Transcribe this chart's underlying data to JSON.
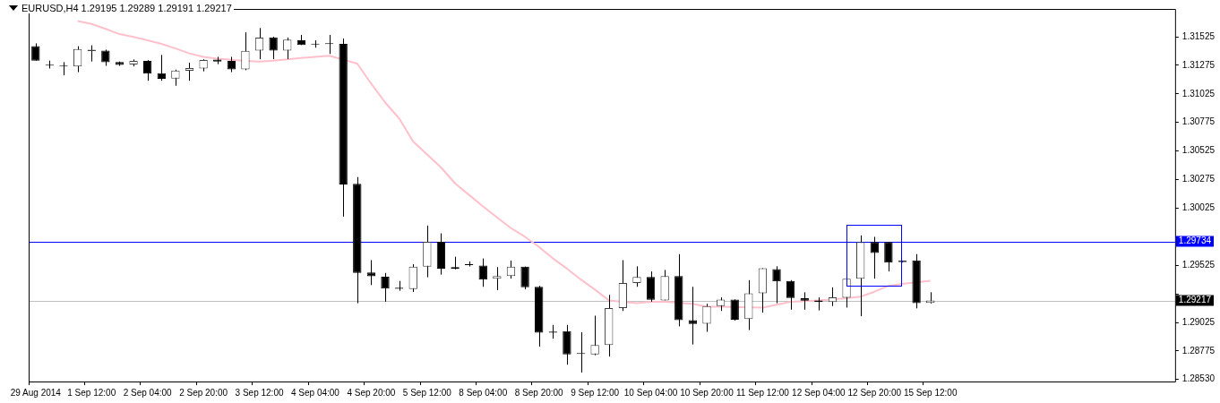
{
  "chart_data": {
    "type": "candlestick",
    "title": "EURUSD,H4 1.29195 1.29289 1.29191 1.29217",
    "color": "#000000",
    "categories": [
      "29 Aug 2014",
      null,
      null,
      null,
      "1 Sep 12:00",
      null,
      null,
      null,
      "2 Sep 04:00",
      null,
      null,
      null,
      "2 Sep 20:00",
      null,
      null,
      null,
      "3 Sep 12:00",
      null,
      null,
      null,
      "4 Sep 04:00",
      null,
      null,
      null,
      "4 Sep 20:00",
      null,
      null,
      null,
      "5 Sep 12:00",
      null,
      null,
      null,
      "8 Sep 04:00",
      null,
      null,
      null,
      "8 Sep 20:00",
      null,
      null,
      null,
      "9 Sep 12:00",
      null,
      null,
      null,
      "10 Sep 04:00",
      null,
      null,
      null,
      "10 Sep 20:00",
      null,
      null,
      null,
      "11 Sep 12:00",
      null,
      null,
      null,
      "12 Sep 04:00",
      null,
      null,
      null,
      "12 Sep 20:00",
      null,
      null,
      null,
      "15 Sep 12:00",
      null,
      null,
      null,
      null,
      null,
      null,
      null,
      null,
      null,
      null,
      null,
      null,
      null,
      null,
      null,
      null,
      null
    ],
    "ohlc": [
      [
        1.31442,
        1.31467,
        1.31316,
        1.31316
      ],
      [
        1.31275,
        1.31316,
        1.31247,
        1.31273
      ],
      [
        1.3127,
        1.31303,
        1.31187,
        1.31265
      ],
      [
        1.31265,
        1.31442,
        1.31215,
        1.31417
      ],
      [
        1.31399,
        1.3145,
        1.31308,
        1.31412
      ],
      [
        1.31404,
        1.31412,
        1.3127,
        1.31301
      ],
      [
        1.31303,
        1.31308,
        1.3127,
        1.31278
      ],
      [
        1.31283,
        1.31326,
        1.31265,
        1.31313
      ],
      [
        1.31313,
        1.31321,
        1.31139,
        1.31202
      ],
      [
        1.31205,
        1.31366,
        1.31139,
        1.31156
      ],
      [
        1.31159,
        1.31237,
        1.31096,
        1.3123
      ],
      [
        1.31227,
        1.31298,
        1.31139,
        1.3125
      ],
      [
        1.31247,
        1.31328,
        1.31222,
        1.31321
      ],
      [
        1.31326,
        1.31349,
        1.31285,
        1.31308
      ],
      [
        1.31313,
        1.31349,
        1.31215,
        1.3124
      ],
      [
        1.3124,
        1.31563,
        1.31232,
        1.31402
      ],
      [
        1.31404,
        1.31601,
        1.31328,
        1.31518
      ],
      [
        1.3152,
        1.31525,
        1.31328,
        1.31404
      ],
      [
        1.31404,
        1.31518,
        1.31328,
        1.315
      ],
      [
        1.31493,
        1.31541,
        1.31452,
        1.31452
      ],
      [
        1.3146,
        1.31493,
        1.31429,
        1.31457
      ],
      [
        1.31462,
        1.31541,
        1.31374,
        1.3146
      ],
      [
        1.31462,
        1.3151,
        1.29951,
        1.30232
      ],
      [
        1.30237,
        1.30297,
        1.29193,
        1.29458
      ],
      [
        1.29463,
        1.2957,
        1.29352,
        1.29428
      ],
      [
        1.29425,
        1.29458,
        1.29206,
        1.29322
      ],
      [
        1.29329,
        1.29388,
        1.29302,
        1.29319
      ],
      [
        1.29317,
        1.29534,
        1.29292,
        1.29514
      ],
      [
        1.29514,
        1.29873,
        1.2942,
        1.29731
      ],
      [
        1.29731,
        1.29805,
        1.29443,
        1.29496
      ],
      [
        1.29509,
        1.296,
        1.29489,
        1.29494
      ],
      [
        1.29532,
        1.29559,
        1.29514,
        1.29527
      ],
      [
        1.29522,
        1.29585,
        1.29337,
        1.294
      ],
      [
        1.29408,
        1.29509,
        1.29307,
        1.29431
      ],
      [
        1.29431,
        1.29567,
        1.29408,
        1.29514
      ],
      [
        1.29514,
        1.29514,
        1.29314,
        1.29332
      ],
      [
        1.29337,
        1.29345,
        1.28814,
        1.28935
      ],
      [
        1.28945,
        1.29003,
        1.28882,
        1.28935
      ],
      [
        1.28948,
        1.29003,
        1.28655,
        1.28746
      ],
      [
        1.28753,
        1.2894,
        1.28587,
        1.28748
      ],
      [
        1.28746,
        1.29084,
        1.28738,
        1.28827
      ],
      [
        1.28827,
        1.29266,
        1.28726,
        1.2915
      ],
      [
        1.2915,
        1.2957,
        1.29125,
        1.2937
      ],
      [
        1.2937,
        1.29516,
        1.29337,
        1.29423
      ],
      [
        1.29423,
        1.29471,
        1.29206,
        1.29223
      ],
      [
        1.29218,
        1.29484,
        1.29218,
        1.29431
      ],
      [
        1.29431,
        1.29623,
        1.28991,
        1.29044
      ],
      [
        1.29044,
        1.29337,
        1.28832,
        1.29011
      ],
      [
        1.29014,
        1.29188,
        1.28943,
        1.29168
      ],
      [
        1.29168,
        1.29244,
        1.29125,
        1.29226
      ],
      [
        1.29226,
        1.29226,
        1.29041,
        1.29049
      ],
      [
        1.29054,
        1.29395,
        1.28958,
        1.29279
      ],
      [
        1.29279,
        1.29499,
        1.2911,
        1.29499
      ],
      [
        1.29491,
        1.29516,
        1.29193,
        1.29383
      ],
      [
        1.29388,
        1.29395,
        1.29137,
        1.29238
      ],
      [
        1.29236,
        1.29289,
        1.29137,
        1.29216
      ],
      [
        1.29218,
        1.29244,
        1.2913,
        1.29203
      ],
      [
        1.29203,
        1.29332,
        1.29168,
        1.29244
      ],
      [
        1.29241,
        1.29408,
        1.29155,
        1.29408
      ],
      [
        1.29408,
        1.29787,
        1.29079,
        1.29729
      ],
      [
        1.29729,
        1.29774,
        1.29408,
        1.29633
      ],
      [
        1.29729,
        1.29729,
        1.29471,
        1.29549
      ],
      [
        1.29552,
        1.29567,
        1.29549,
        1.29567
      ],
      [
        1.29567,
        1.29623,
        1.29148,
        1.29193
      ],
      [
        1.29195,
        1.29289,
        1.29191,
        1.29217
      ],
      null,
      null,
      null,
      null,
      null,
      null,
      null,
      null,
      null,
      null,
      null,
      null,
      null,
      null,
      null,
      null,
      null
    ],
    "series": [
      {
        "type": "line",
        "color": "#ffc0cb",
        "values": [
          null,
          null,
          null,
          1.31662,
          1.31637,
          1.31594,
          1.31548,
          1.31523,
          1.31493,
          1.31462,
          1.31422,
          1.31379,
          1.31349,
          1.31333,
          1.31323,
          1.31313,
          1.31308,
          1.31316,
          1.31328,
          1.31338,
          1.31349,
          1.31359,
          null,
          1.3129,
          1.31114,
          1.30949,
          1.3081,
          1.30608,
          1.30494,
          1.30381,
          1.30242,
          1.30141,
          1.3004,
          1.29944,
          1.2985,
          1.29774,
          1.29686,
          1.29585,
          1.29496,
          1.294,
          1.29312,
          1.29218,
          null,
          1.29193,
          1.29206,
          1.29206,
          null,
          1.29188,
          1.29163,
          1.29163,
          null,
          null,
          1.29155,
          1.2918,
          1.29206,
          1.29211,
          1.29218,
          null,
          1.29236,
          1.29251,
          1.29294,
          1.29345,
          1.29362,
          null,
          1.2939,
          null,
          null,
          null,
          null,
          null,
          null,
          null,
          null,
          null,
          null,
          null,
          null,
          null,
          null,
          null,
          null,
          null
        ]
      }
    ],
    "colors": [
      "#000000",
      "#000000",
      "#000000",
      "#404040",
      "#404040",
      "#000000",
      "#000000",
      "#404040",
      "#000000",
      "#000000",
      "#404040",
      "#404040",
      "#404040",
      "#000000",
      "#000000",
      "#404040",
      "#404040",
      "#000000",
      "#404040",
      "#000000",
      "#000000",
      "#000000",
      "#000000",
      "#000000",
      "#000000",
      "#000000",
      "#000000",
      "#404040",
      "#404040",
      "#000000",
      "#000000",
      "#000000",
      "#000000",
      "#404040",
      "#404040",
      "#000000",
      "#000000",
      "#000000",
      "#000000",
      "#000000",
      "#404040",
      "#404040",
      "#404040",
      "#404040",
      "#000000",
      "#404040",
      "#000000",
      "#000000",
      "#404040",
      "#404040",
      "#000000",
      "#404040",
      "#404040",
      "#000000",
      "#000000",
      "#000000",
      "#000000",
      "#404040",
      "#404040",
      "#404040",
      "#000000",
      "#000000",
      "#404040",
      "#000000",
      "#404040",
      null,
      null,
      null,
      null,
      null,
      null,
      null,
      null,
      null,
      null,
      null,
      null,
      null,
      null,
      null,
      null,
      null
    ],
    "ylim": [
      1.28508,
      1.31768
    ],
    "yticks": [
      {
        "value": 1.2853,
        "label": "1.28530"
      },
      1.28775,
      1.29025,
      {
        "value": 1.29275,
        "label": null
      },
      1.29525,
      {
        "value": 1.29775,
        "label": null
      },
      1.30025,
      1.30275,
      1.30525,
      1.30775,
      1.31025,
      1.31275,
      1.31525
    ],
    "ref_lines": [
      {
        "axis": "y",
        "value": 1.29734,
        "label": "1.29734",
        "color": "#0000ff"
      },
      {
        "axis": "y",
        "value": 1.29217,
        "label": "1.29217",
        "color": "#c0c0c0"
      }
    ]
  }
}
